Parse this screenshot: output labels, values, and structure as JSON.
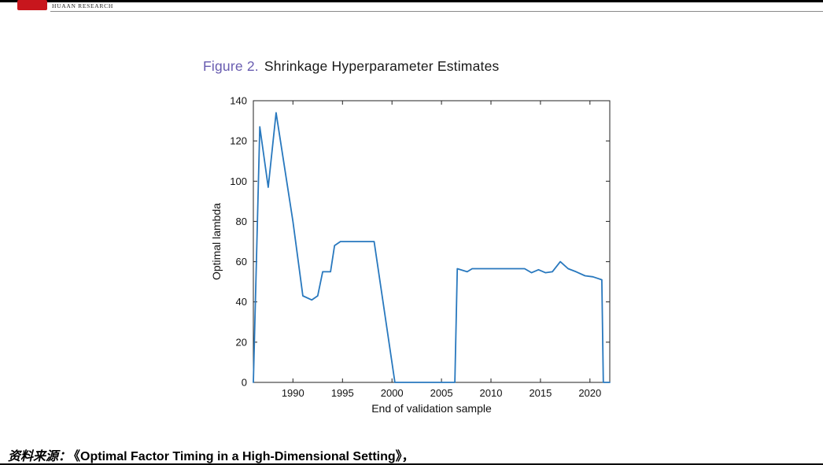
{
  "header": {
    "brand_text": "HUAAN RESEARCH",
    "logo_color": "#c8161d"
  },
  "figure": {
    "title_prefix": "Figure 2.",
    "title_rest": "Shrinkage Hyperparameter Estimates",
    "title_prefix_color": "#685cb0"
  },
  "chart_data": {
    "type": "line",
    "title": "Figure 2. Shrinkage Hyperparameter Estimates",
    "xlabel": "End of validation sample",
    "ylabel": "Optimal lambda",
    "xlim": [
      1986,
      2022
    ],
    "ylim": [
      0,
      140
    ],
    "x_ticks": [
      1990,
      1995,
      2000,
      2005,
      2010,
      2015,
      2020
    ],
    "y_ticks": [
      0,
      20,
      40,
      60,
      80,
      100,
      120,
      140
    ],
    "grid": false,
    "legend": "none",
    "line_color": "#2878be",
    "x": [
      1986.0,
      1986.65,
      1987.5,
      1988.3,
      1990.0,
      1991.0,
      1991.9,
      1992.5,
      1993.0,
      1993.8,
      1994.2,
      1994.8,
      1998.2,
      2000.3,
      2006.35,
      2006.6,
      2007.6,
      2008.1,
      2008.6,
      2013.4,
      2014.1,
      2014.8,
      2015.5,
      2016.2,
      2017.0,
      2017.8,
      2018.6,
      2019.5,
      2020.3,
      2021.2,
      2021.35,
      2022.0
    ],
    "y": [
      0,
      127,
      97,
      134,
      80,
      43,
      41,
      43,
      55,
      55,
      68,
      70,
      70,
      0,
      0,
      56.5,
      55,
      56.5,
      56.5,
      56.5,
      54.5,
      56,
      54.5,
      55,
      60,
      56.5,
      55,
      53,
      52.5,
      51,
      0,
      0
    ]
  },
  "footer": {
    "source_label": "资料来源：",
    "source_text": "《Optimal Factor Timing in a High-Dimensional Setting》，"
  }
}
